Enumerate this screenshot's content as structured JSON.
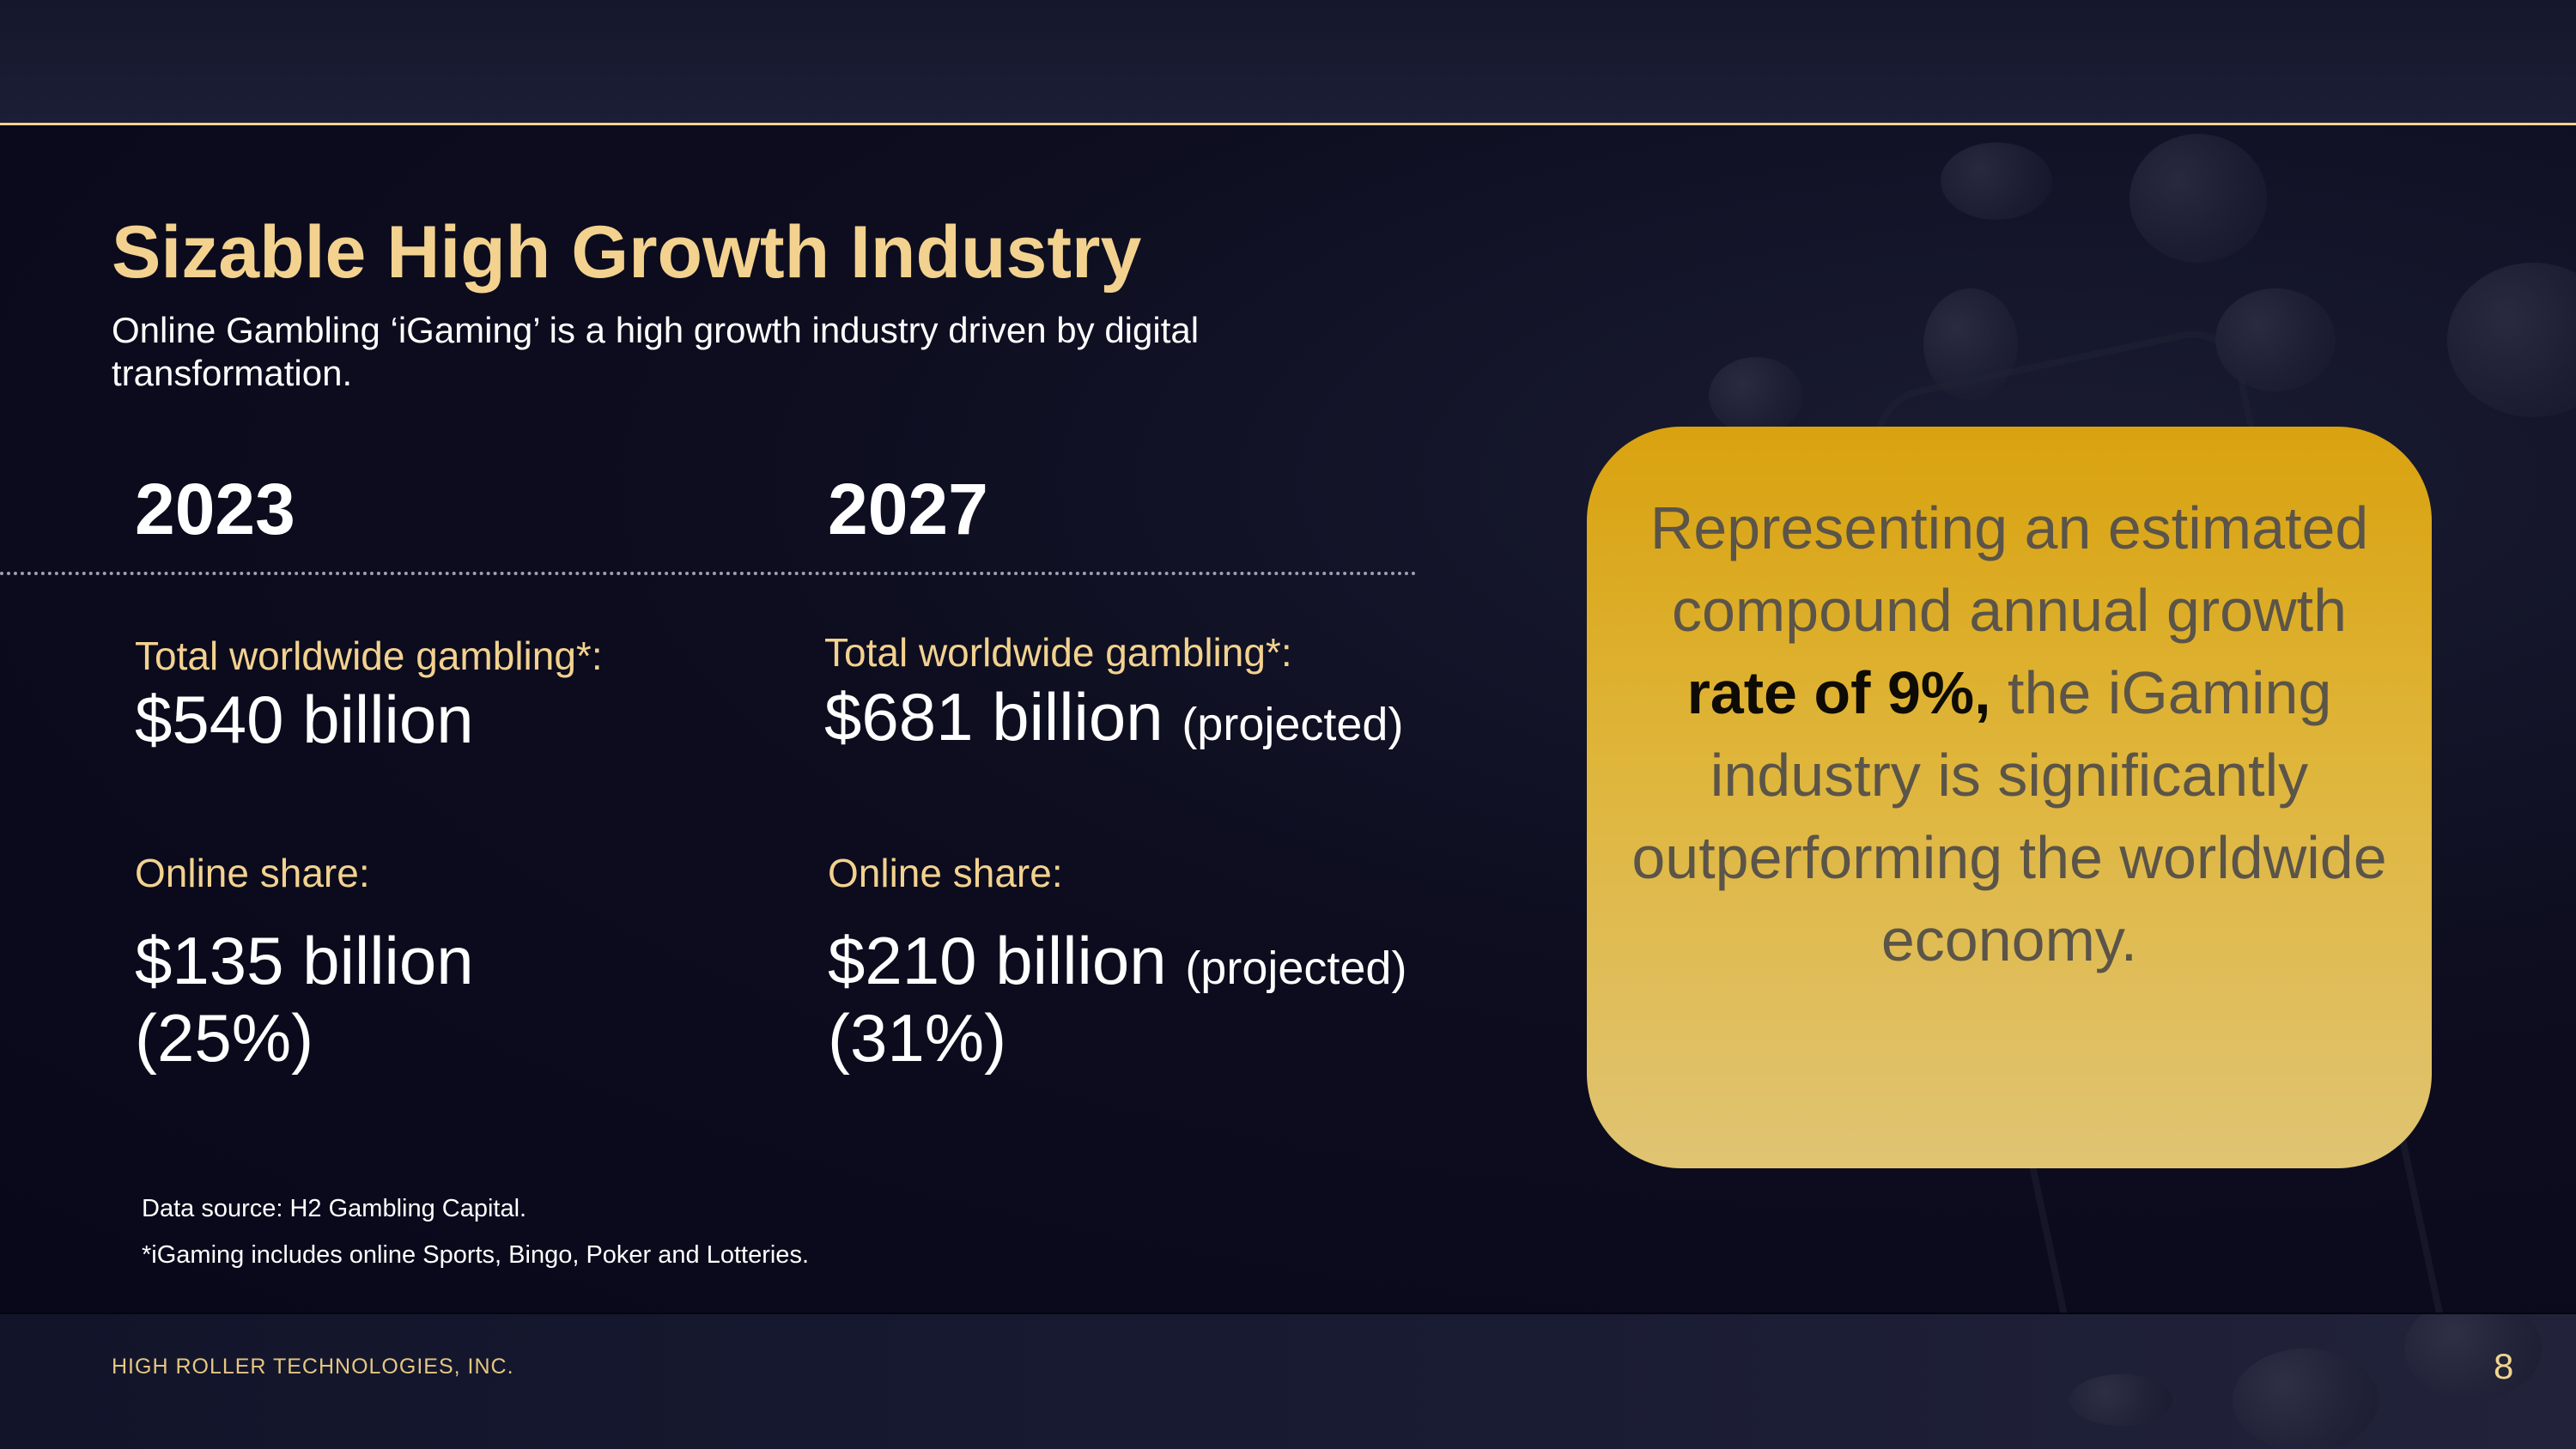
{
  "slide": {
    "title": "Sizable High Growth Industry",
    "subtitle": "Online Gambling ‘iGaming’ is a high growth industry driven by digital transformation."
  },
  "columns": [
    {
      "year": "2023",
      "total_label": "Total worldwide gambling*:",
      "total_value": "$540 billion",
      "total_note": "",
      "online_label": "Online share:",
      "online_value": "$135 billion",
      "online_note": "",
      "online_pct": "(25%)"
    },
    {
      "year": "2027",
      "total_label": "Total worldwide gambling*:",
      "total_value": "$681 billion",
      "total_note": "(projected)",
      "online_label": "Online share:",
      "online_value": "$210 billion",
      "online_note": "(projected)",
      "online_pct": "(31%)"
    }
  ],
  "callout": {
    "text_before": "Representing an estimated compound annual growth ",
    "text_bold": "rate of 9%,",
    "text_after": " the iGaming industry is significantly outperforming the worldwide economy."
  },
  "footnotes": {
    "source": "Data source: H2 Gambling Capital.",
    "definition": "*iGaming includes online Sports, Bingo, Poker and Lotteries."
  },
  "footer": {
    "company": "HIGH ROLLER TECHNOLOGIES, INC.",
    "page_number": "8"
  },
  "colors": {
    "accent_gold": "#f3d28f",
    "background": "#0b0b1c",
    "callout_top": "#d9a20f",
    "callout_bottom": "#e0c473"
  }
}
